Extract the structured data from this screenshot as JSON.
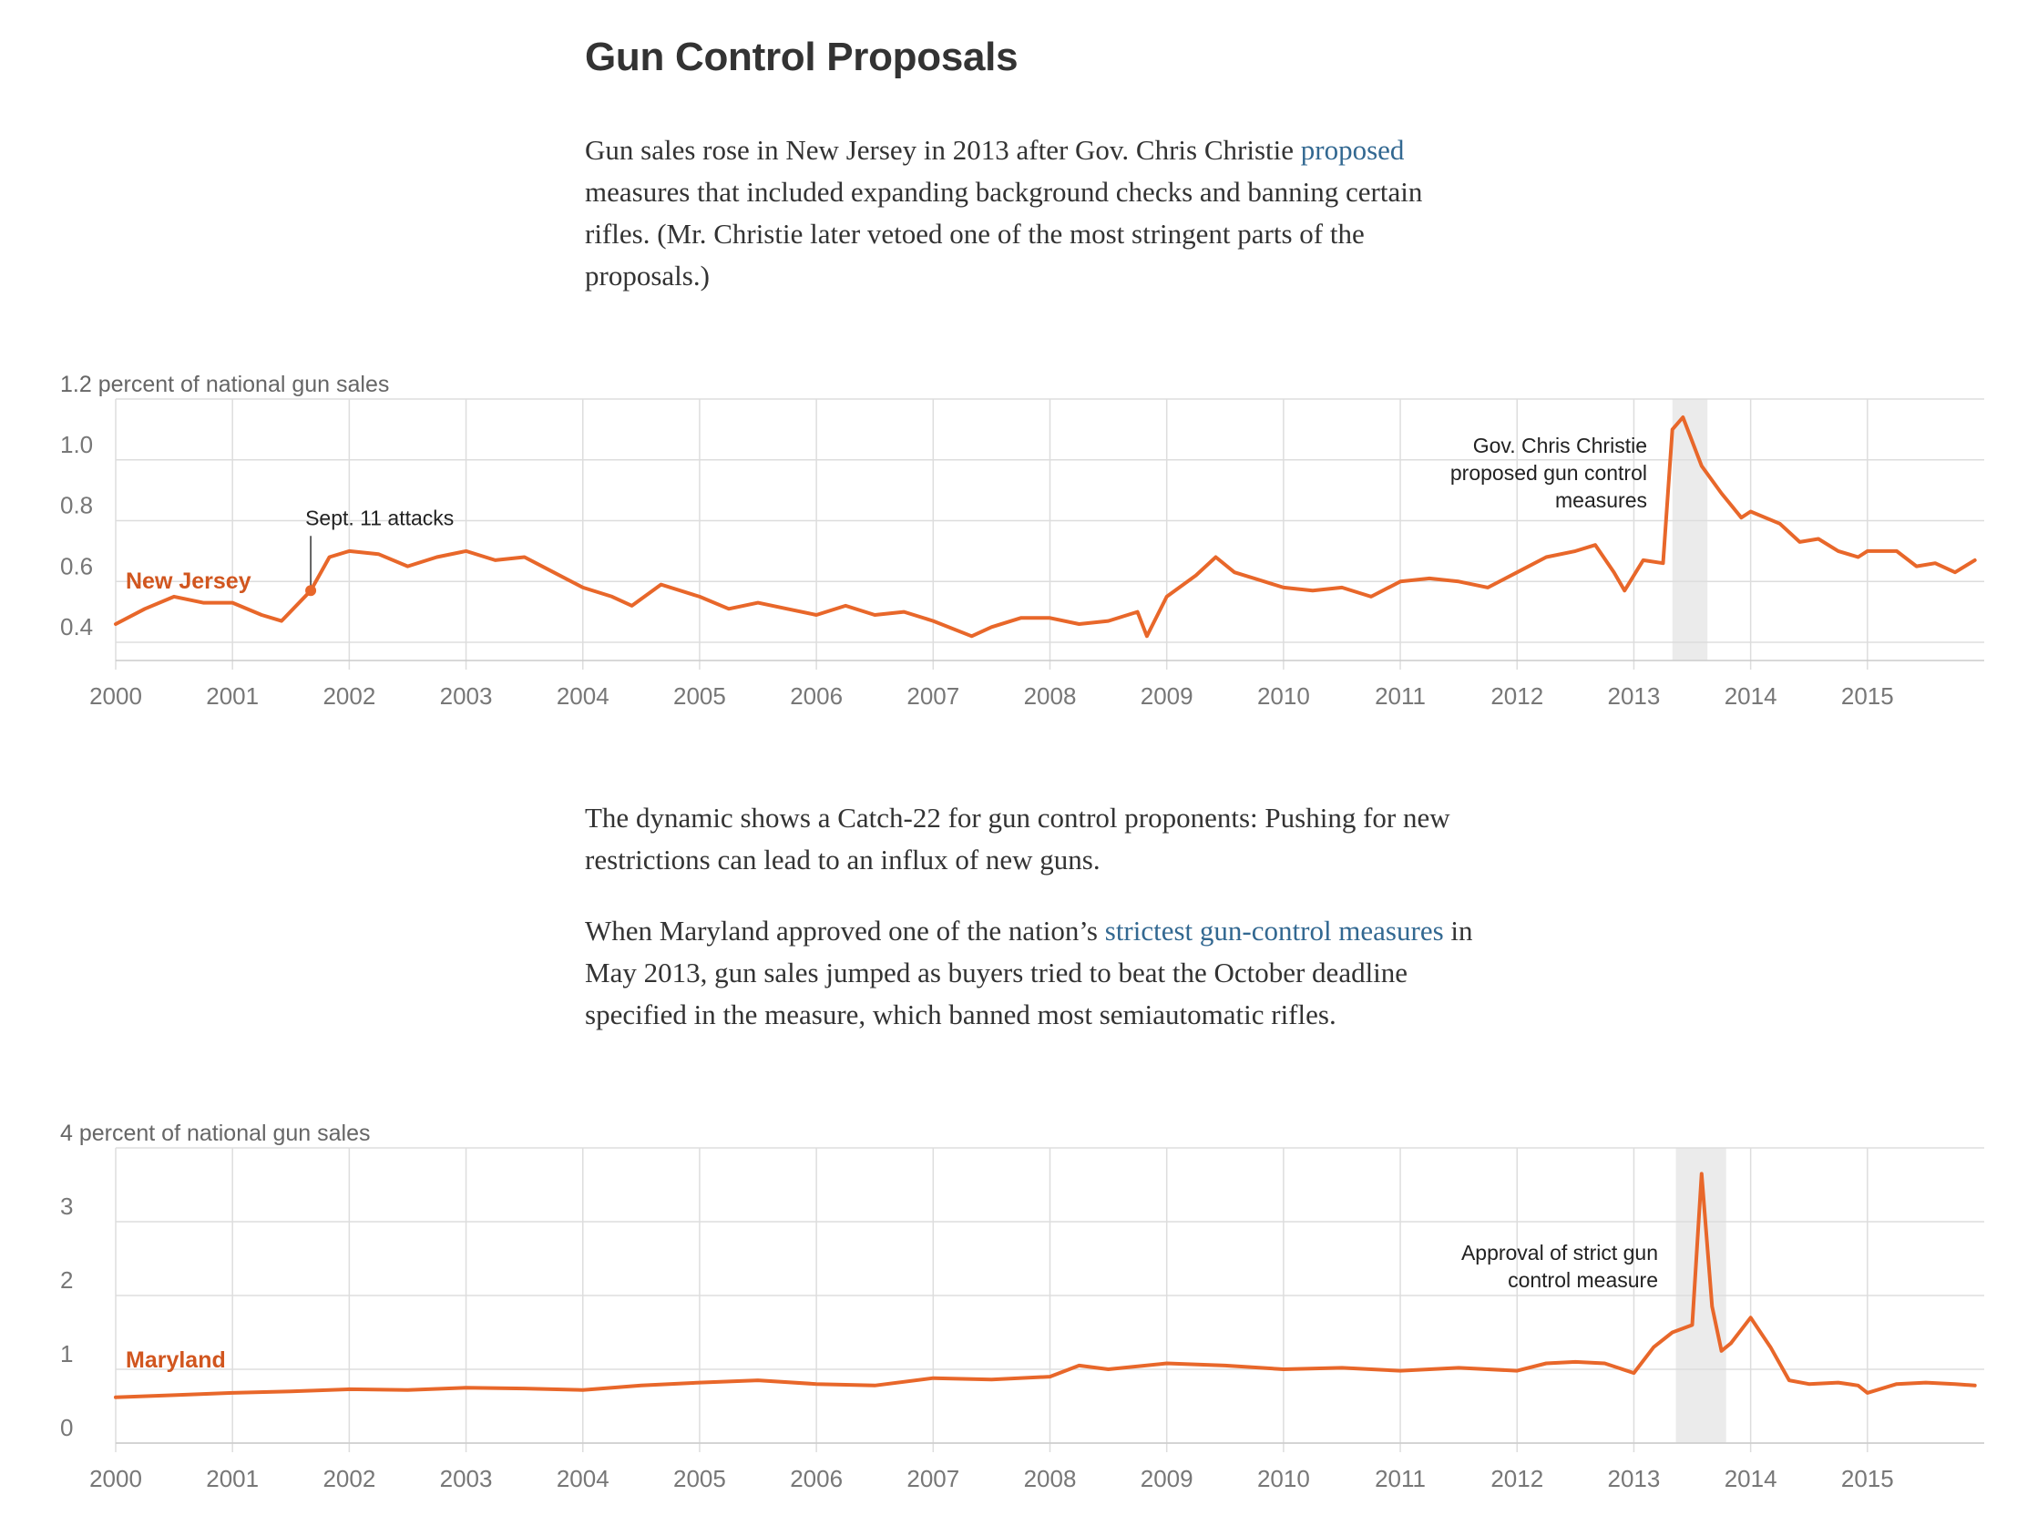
{
  "headline": "Gun Control Proposals",
  "intro": {
    "pre": "Gun sales rose in New Jersey in 2013 after Gov. Chris Christie ",
    "link": "proposed",
    "post": " measures that included expanding background checks and banning certain rifles. (Mr. Christie later vetoed one of the most stringent parts of the proposals.)"
  },
  "para2": "The dynamic shows a Catch-22 for gun control proponents: Pushing for new restrictions can lead to an influx of new guns.",
  "para3": {
    "pre": "When Maryland approved one of the nation’s ",
    "link": "strictest gun-control measures",
    "post": " in May 2013, gun sales jumped as buyers tried to beat the October deadline specified in the measure, which banned most semiautomatic rifles."
  },
  "colors": {
    "line": "#e8672a",
    "label": "#d1561f",
    "shade": "#ebebeb",
    "grid": "#dddddd"
  },
  "chart_data": [
    {
      "type": "line",
      "series_label": "New Jersey",
      "unit_label": "1.2 percent of national gun sales",
      "ylim": [
        0.4,
        1.2
      ],
      "yticks": [
        0.4,
        0.6,
        0.8,
        1.0
      ],
      "ytick_labels": [
        "0.4",
        "0.6",
        "0.8",
        "1.0"
      ],
      "xlim": [
        2000,
        2016
      ],
      "xticks": [
        2000,
        2001,
        2002,
        2003,
        2004,
        2005,
        2006,
        2007,
        2008,
        2009,
        2010,
        2011,
        2012,
        2013,
        2014,
        2015
      ],
      "xtick_labels": [
        "2000",
        "2001",
        "2002",
        "2003",
        "2004",
        "2005",
        "2006",
        "2007",
        "2008",
        "2009",
        "2010",
        "2011",
        "2012",
        "2013",
        "2014",
        "2015"
      ],
      "shade": [
        2013.33,
        2013.63
      ],
      "marker": {
        "x": 2001.67,
        "y": 0.57,
        "label": "Sept. 11 attacks"
      },
      "annotation": [
        "Gov. Chris Christie",
        "proposed gun control",
        "measures"
      ],
      "points": [
        [
          2000,
          0.46
        ],
        [
          2000.25,
          0.51
        ],
        [
          2000.5,
          0.55
        ],
        [
          2000.75,
          0.53
        ],
        [
          2001,
          0.53
        ],
        [
          2001.25,
          0.49
        ],
        [
          2001.42,
          0.47
        ],
        [
          2001.67,
          0.57
        ],
        [
          2001.83,
          0.68
        ],
        [
          2002,
          0.7
        ],
        [
          2002.25,
          0.69
        ],
        [
          2002.5,
          0.65
        ],
        [
          2002.75,
          0.68
        ],
        [
          2003,
          0.7
        ],
        [
          2003.25,
          0.67
        ],
        [
          2003.5,
          0.68
        ],
        [
          2003.75,
          0.63
        ],
        [
          2004,
          0.58
        ],
        [
          2004.25,
          0.55
        ],
        [
          2004.42,
          0.52
        ],
        [
          2004.67,
          0.59
        ],
        [
          2005,
          0.55
        ],
        [
          2005.25,
          0.51
        ],
        [
          2005.5,
          0.53
        ],
        [
          2005.75,
          0.51
        ],
        [
          2006,
          0.49
        ],
        [
          2006.25,
          0.52
        ],
        [
          2006.5,
          0.49
        ],
        [
          2006.75,
          0.5
        ],
        [
          2007,
          0.47
        ],
        [
          2007.33,
          0.42
        ],
        [
          2007.5,
          0.45
        ],
        [
          2007.75,
          0.48
        ],
        [
          2008,
          0.48
        ],
        [
          2008.25,
          0.46
        ],
        [
          2008.5,
          0.47
        ],
        [
          2008.75,
          0.5
        ],
        [
          2008.83,
          0.42
        ],
        [
          2009,
          0.55
        ],
        [
          2009.25,
          0.62
        ],
        [
          2009.42,
          0.68
        ],
        [
          2009.58,
          0.63
        ],
        [
          2009.75,
          0.61
        ],
        [
          2010,
          0.58
        ],
        [
          2010.25,
          0.57
        ],
        [
          2010.5,
          0.58
        ],
        [
          2010.75,
          0.55
        ],
        [
          2011,
          0.6
        ],
        [
          2011.25,
          0.61
        ],
        [
          2011.5,
          0.6
        ],
        [
          2011.75,
          0.58
        ],
        [
          2012,
          0.63
        ],
        [
          2012.25,
          0.68
        ],
        [
          2012.5,
          0.7
        ],
        [
          2012.67,
          0.72
        ],
        [
          2012.83,
          0.63
        ],
        [
          2012.92,
          0.57
        ],
        [
          2013.08,
          0.67
        ],
        [
          2013.25,
          0.66
        ],
        [
          2013.33,
          1.1
        ],
        [
          2013.42,
          1.14
        ],
        [
          2013.58,
          0.98
        ],
        [
          2013.75,
          0.89
        ],
        [
          2013.92,
          0.81
        ],
        [
          2014,
          0.83
        ],
        [
          2014.25,
          0.79
        ],
        [
          2014.42,
          0.73
        ],
        [
          2014.58,
          0.74
        ],
        [
          2014.75,
          0.7
        ],
        [
          2014.92,
          0.68
        ],
        [
          2015,
          0.7
        ],
        [
          2015.25,
          0.7
        ],
        [
          2015.42,
          0.65
        ],
        [
          2015.58,
          0.66
        ],
        [
          2015.75,
          0.63
        ],
        [
          2015.92,
          0.67
        ]
      ]
    },
    {
      "type": "line",
      "series_label": "Maryland",
      "unit_label": "4 percent of national gun sales",
      "ylim": [
        0,
        4
      ],
      "yticks": [
        0,
        1,
        2,
        3
      ],
      "ytick_labels": [
        "0",
        "1",
        "2",
        "3"
      ],
      "xlim": [
        2000,
        2016
      ],
      "xticks": [
        2000,
        2001,
        2002,
        2003,
        2004,
        2005,
        2006,
        2007,
        2008,
        2009,
        2010,
        2011,
        2012,
        2013,
        2014,
        2015
      ],
      "xtick_labels": [
        "2000",
        "2001",
        "2002",
        "2003",
        "2004",
        "2005",
        "2006",
        "2007",
        "2008",
        "2009",
        "2010",
        "2011",
        "2012",
        "2013",
        "2014",
        "2015"
      ],
      "shade": [
        2013.36,
        2013.79
      ],
      "annotation": [
        "Approval of strict gun",
        "control measure"
      ],
      "points": [
        [
          2000,
          0.62
        ],
        [
          2000.5,
          0.65
        ],
        [
          2001,
          0.68
        ],
        [
          2001.5,
          0.7
        ],
        [
          2002,
          0.73
        ],
        [
          2002.5,
          0.72
        ],
        [
          2003,
          0.75
        ],
        [
          2003.5,
          0.74
        ],
        [
          2004,
          0.72
        ],
        [
          2004.5,
          0.78
        ],
        [
          2005,
          0.82
        ],
        [
          2005.5,
          0.85
        ],
        [
          2006,
          0.8
        ],
        [
          2006.5,
          0.78
        ],
        [
          2007,
          0.88
        ],
        [
          2007.5,
          0.86
        ],
        [
          2008,
          0.9
        ],
        [
          2008.25,
          1.05
        ],
        [
          2008.5,
          1.0
        ],
        [
          2009,
          1.08
        ],
        [
          2009.5,
          1.05
        ],
        [
          2010,
          1.0
        ],
        [
          2010.5,
          1.02
        ],
        [
          2011,
          0.98
        ],
        [
          2011.5,
          1.02
        ],
        [
          2012,
          0.98
        ],
        [
          2012.25,
          1.08
        ],
        [
          2012.5,
          1.1
        ],
        [
          2012.75,
          1.08
        ],
        [
          2013,
          0.95
        ],
        [
          2013.17,
          1.3
        ],
        [
          2013.33,
          1.5
        ],
        [
          2013.5,
          1.6
        ],
        [
          2013.58,
          3.65
        ],
        [
          2013.67,
          1.85
        ],
        [
          2013.75,
          1.25
        ],
        [
          2013.83,
          1.35
        ],
        [
          2014,
          1.7
        ],
        [
          2014.17,
          1.3
        ],
        [
          2014.33,
          0.85
        ],
        [
          2014.5,
          0.8
        ],
        [
          2014.75,
          0.82
        ],
        [
          2014.92,
          0.78
        ],
        [
          2015,
          0.68
        ],
        [
          2015.25,
          0.8
        ],
        [
          2015.5,
          0.82
        ],
        [
          2015.75,
          0.8
        ],
        [
          2015.92,
          0.78
        ]
      ]
    }
  ]
}
